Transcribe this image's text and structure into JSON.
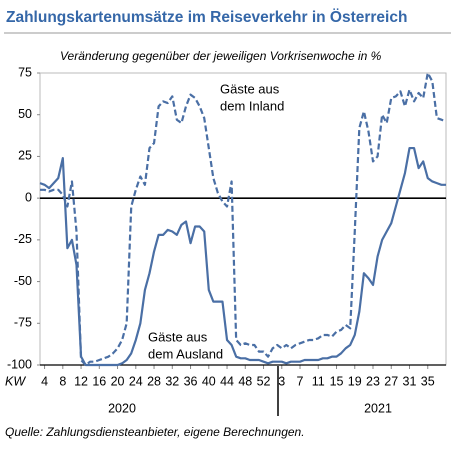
{
  "chart_data": {
    "type": "line",
    "title": "Zahlungskartenumsätze im Reiseverkehr in Österreich",
    "subtitle": "Veränderung gegenüber der jeweiligen Vorkrisenwoche in %",
    "x_label": "KW",
    "year_labels": [
      "2020",
      "2021"
    ],
    "source": "Quelle: Zahlungsdiensteanbieter, eigene Berechnungen.",
    "x": [
      3,
      4,
      5,
      6,
      7,
      8,
      9,
      10,
      11,
      12,
      13,
      14,
      15,
      16,
      17,
      18,
      19,
      20,
      21,
      22,
      23,
      24,
      25,
      26,
      27,
      28,
      29,
      30,
      31,
      32,
      33,
      34,
      35,
      36,
      37,
      38,
      39,
      40,
      41,
      42,
      43,
      44,
      45,
      46,
      47,
      48,
      49,
      50,
      51,
      52,
      53,
      54,
      55,
      56,
      57,
      58,
      59,
      60,
      61,
      62,
      63,
      64,
      65,
      66,
      67,
      68,
      69,
      70,
      71,
      72,
      73,
      74,
      75,
      76,
      77,
      78,
      79,
      80,
      81,
      82,
      83,
      84,
      85,
      86,
      87,
      88,
      89,
      90,
      91,
      92
    ],
    "series": [
      {
        "color": "#4a6fa5",
        "dash": true,
        "values": [
          5,
          5,
          4,
          5,
          5,
          2,
          -5,
          10,
          -20,
          -97,
          -100,
          -98,
          -98,
          -97,
          -96,
          -95,
          -93,
          -90,
          -85,
          -75,
          -5,
          5,
          13,
          8,
          30,
          33,
          55,
          58,
          57,
          61,
          47,
          45,
          55,
          62,
          60,
          55,
          48,
          30,
          12,
          3,
          -2,
          -5,
          10,
          -85,
          -88,
          -87,
          -88,
          -88,
          -92,
          -92,
          -95,
          -90,
          -88,
          -90,
          -88,
          -90,
          -88,
          -87,
          -86,
          -85,
          -85,
          -84,
          -82,
          -82,
          -83,
          -80,
          -79,
          -76,
          -78,
          -20,
          42,
          52,
          40,
          22,
          25,
          50,
          45,
          60,
          61,
          64,
          55,
          65,
          58,
          63,
          60,
          75,
          70,
          48,
          47,
          46
        ]
      },
      {
        "color": "#4a6fa5",
        "dash": false,
        "values": [
          9,
          8,
          6,
          9,
          12,
          24,
          -30,
          -25,
          -40,
          -95,
          -100,
          -100,
          -100,
          -100,
          -100,
          -100,
          -100,
          -100,
          -99,
          -97,
          -93,
          -85,
          -75,
          -55,
          -45,
          -32,
          -22,
          -22,
          -19,
          -20,
          -22,
          -16,
          -14,
          -27,
          -17,
          -17,
          -20,
          -55,
          -62,
          -62,
          -62,
          -85,
          -88,
          -95,
          -96,
          -96,
          -97,
          -97,
          -97,
          -98,
          -99,
          -98,
          -98,
          -98,
          -99,
          -98,
          -98,
          -98,
          -97,
          -97,
          -97,
          -97,
          -96,
          -96,
          -95,
          -95,
          -93,
          -90,
          -88,
          -82,
          -68,
          -45,
          -48,
          -52,
          -35,
          -25,
          -20,
          -15,
          -5,
          5,
          15,
          30,
          30,
          18,
          22,
          12,
          10,
          9,
          8,
          8
        ]
      }
    ],
    "annotations": [
      [
        "Gäste aus",
        "dem Inland"
      ],
      [
        "Gäste aus",
        "dem Ausland"
      ]
    ],
    "xlim": [
      3,
      92
    ],
    "xticks": [
      4,
      8,
      12,
      16,
      20,
      24,
      28,
      32,
      36,
      40,
      44,
      48,
      52,
      {
        "value": 56,
        "label": "3"
      },
      {
        "value": 60,
        "label": "7"
      },
      {
        "value": 64,
        "label": "11"
      },
      {
        "value": 68,
        "label": "15"
      },
      {
        "value": 72,
        "label": "19"
      },
      {
        "value": 76,
        "label": "23"
      },
      {
        "value": 80,
        "label": "27"
      },
      {
        "value": 84,
        "label": "31"
      },
      {
        "value": 88,
        "label": "35"
      }
    ],
    "ylim": [
      -100,
      75
    ],
    "yticks": [
      -100,
      -75,
      -50,
      -25,
      0,
      25,
      50,
      75
    ]
  }
}
